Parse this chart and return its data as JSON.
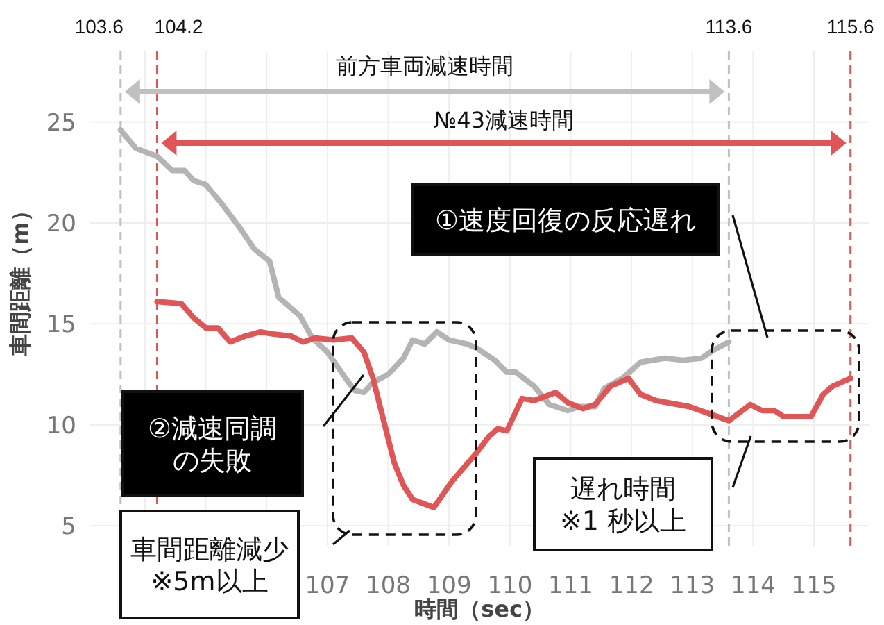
{
  "chart_data": {
    "type": "line",
    "xlabel": "時間（sec）",
    "ylabel": "車間距離（m）",
    "xlim": [
      103.1,
      115.9
    ],
    "ylim": [
      4,
      28.5
    ],
    "xticks": [
      {
        "value": 104,
        "label": null
      },
      {
        "value": 105,
        "label": null
      },
      {
        "value": 106,
        "label": null
      },
      107,
      108,
      109,
      110,
      111,
      112,
      113,
      114,
      115
    ],
    "yticks": [
      5,
      10,
      15,
      20,
      25
    ],
    "grid": true,
    "line_style": "solid",
    "marker": "none",
    "series": [
      {
        "color": "#b4b4b4",
        "x": [
          103.6,
          103.85,
          104.2,
          104.45,
          104.65,
          104.8,
          105.0,
          105.25,
          105.55,
          105.8,
          106.05,
          106.2,
          106.55,
          106.75,
          107.0,
          107.3,
          107.45,
          107.6,
          107.75,
          108.0,
          108.25,
          108.4,
          108.6,
          108.8,
          109.0,
          109.3,
          109.45,
          109.75,
          109.95,
          110.1,
          110.4,
          110.65,
          110.95,
          111.15,
          111.4,
          111.55,
          111.85,
          112.15,
          112.55,
          112.85,
          113.15,
          113.35,
          113.6
        ],
        "values": [
          24.6,
          23.7,
          23.3,
          22.6,
          22.6,
          22.1,
          21.9,
          21.0,
          19.8,
          18.7,
          18.1,
          16.3,
          15.4,
          14.3,
          13.6,
          12.3,
          11.7,
          11.6,
          12.1,
          12.5,
          13.3,
          14.2,
          14.0,
          14.6,
          14.2,
          14.0,
          13.8,
          13.2,
          12.6,
          12.6,
          11.9,
          11.0,
          10.7,
          10.9,
          10.9,
          11.8,
          12.3,
          13.1,
          13.3,
          13.2,
          13.3,
          13.7,
          14.1
        ]
      },
      {
        "color": "#e05555",
        "x": [
          104.2,
          104.6,
          104.8,
          105.0,
          105.2,
          105.4,
          105.65,
          105.9,
          106.1,
          106.4,
          106.6,
          106.8,
          107.1,
          107.4,
          107.6,
          107.75,
          107.95,
          108.1,
          108.25,
          108.4,
          108.75,
          109.05,
          109.45,
          109.65,
          109.8,
          109.95,
          110.2,
          110.4,
          110.75,
          110.95,
          111.2,
          111.4,
          111.65,
          111.95,
          112.15,
          112.4,
          112.95,
          113.6,
          113.95,
          114.15,
          114.35,
          114.5,
          114.95,
          115.15,
          115.3,
          115.6
        ],
        "values": [
          16.1,
          16.0,
          15.3,
          14.8,
          14.8,
          14.1,
          14.4,
          14.6,
          14.5,
          14.4,
          14.1,
          14.3,
          14.2,
          14.3,
          13.6,
          12.3,
          9.9,
          8.1,
          7.0,
          6.3,
          5.9,
          7.2,
          8.6,
          9.4,
          9.8,
          9.7,
          11.3,
          11.2,
          11.6,
          11.1,
          10.8,
          11.0,
          11.9,
          12.3,
          11.5,
          11.2,
          10.9,
          10.2,
          11.0,
          10.7,
          10.7,
          10.4,
          10.4,
          11.5,
          11.9,
          12.3
        ]
      }
    ],
    "ref_lines": [
      {
        "axis": "x",
        "value": 103.6,
        "label": "103.6",
        "color": "#c0c0c0",
        "line_style": "dashed"
      },
      {
        "axis": "x",
        "value": 104.2,
        "label": "104.2",
        "color": "#e05555",
        "line_style": "dashed"
      },
      {
        "axis": "x",
        "value": 113.6,
        "label": "113.6",
        "color": "#c0c0c0",
        "line_style": "dashed"
      },
      {
        "axis": "x",
        "value": 115.6,
        "label": "115.6",
        "color": "#e05555",
        "line_style": "dashed"
      }
    ],
    "annotations": [
      "前方車両減速時間",
      "№43減速時間",
      "①速度回復の反応遅れ",
      "②減速同調の失敗",
      "車間距離減少※5m以上",
      "遅れ時間※1 秒以上"
    ]
  }
}
